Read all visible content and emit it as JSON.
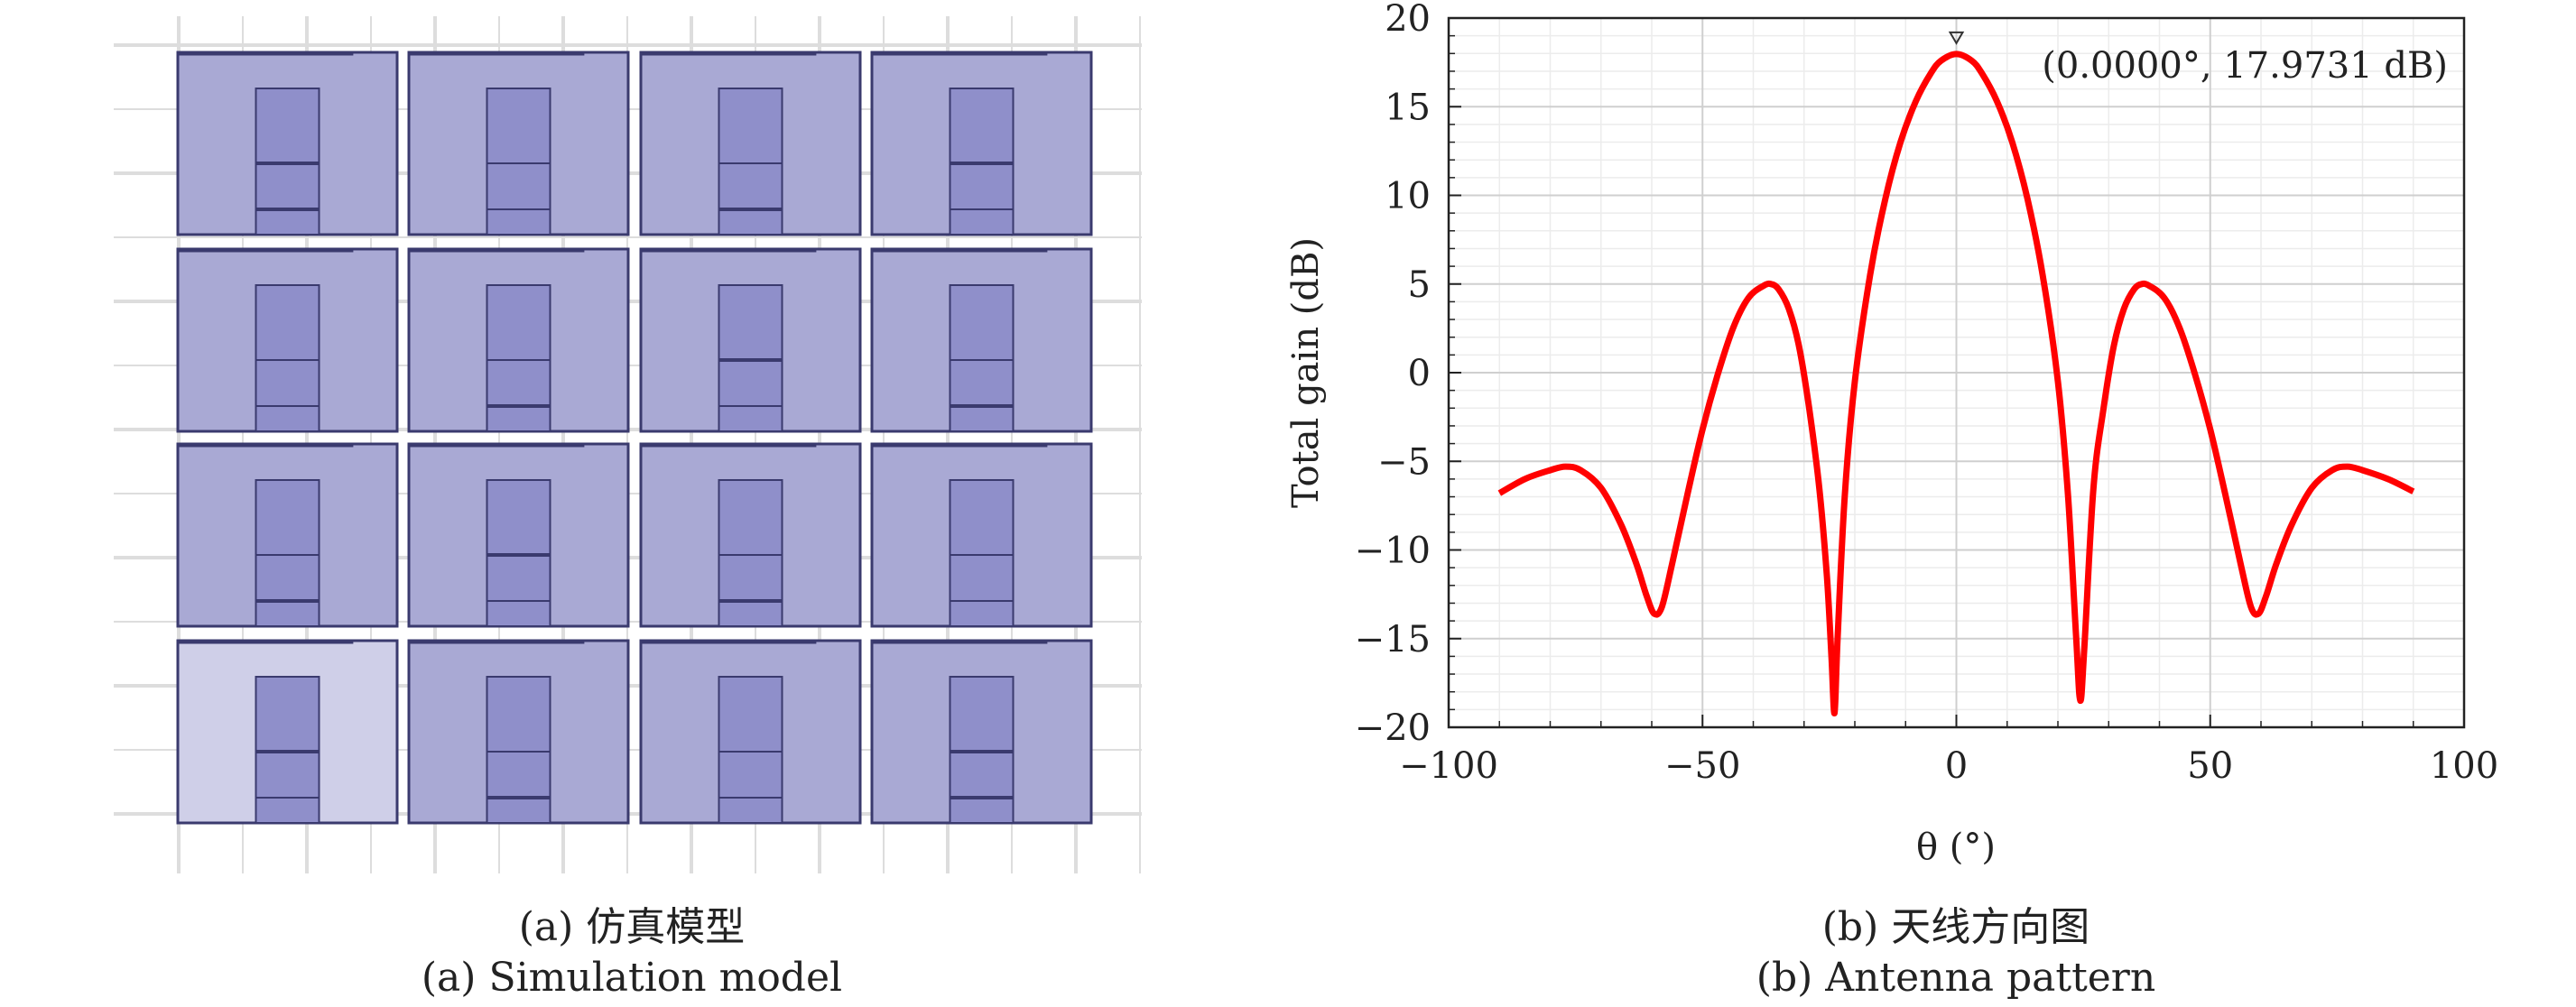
{
  "panel_a": {
    "caption_cn": "(a) 仿真模型",
    "caption_en": "(a) Simulation model",
    "grid_rows": 4,
    "grid_cols": 4,
    "colors": {
      "patch": "#a9a9d4",
      "patch_light": "#cfcfe8",
      "feed": "#8f8fca",
      "edge": "#3a3a6e",
      "grid": "#dddddd"
    }
  },
  "panel_b": {
    "caption_cn": "(b) 天线方向图",
    "caption_en": "(b) Antenna pattern",
    "annotation": "(0.0000°, 17.9731 dB)"
  },
  "chart_data": {
    "type": "line",
    "title": "",
    "xlabel": "θ (°)",
    "ylabel": "Total gain (dB)",
    "xlim": [
      -100,
      100
    ],
    "ylim": [
      -20,
      20
    ],
    "xticks": [
      -100,
      -50,
      0,
      50,
      100
    ],
    "yticks": [
      -20,
      -15,
      -10,
      -5,
      0,
      5,
      10,
      15,
      20
    ],
    "xtick_labels": [
      "−100",
      "−50",
      "0",
      "50",
      "100"
    ],
    "ytick_labels": [
      "−20",
      "−15",
      "−10",
      "−5",
      "0",
      "5",
      "10",
      "15",
      "20"
    ],
    "grid": true,
    "color": "#ff0000",
    "series": [
      {
        "x": [
          -90,
          -85,
          -80,
          -77,
          -74,
          -70,
          -66,
          -63,
          -61,
          -59.5,
          -58,
          -56,
          -53,
          -50,
          -47,
          -44,
          -41,
          -38,
          -36.5,
          -35,
          -33,
          -31,
          -29,
          -27,
          -25.5,
          -24.6,
          -24,
          -23.4,
          -22,
          -20,
          -17,
          -14,
          -11,
          -8,
          -5,
          -3,
          0,
          3,
          5,
          8,
          11,
          14,
          17,
          20,
          22,
          23.6,
          24.4,
          25.2,
          27,
          29,
          31,
          33,
          35,
          36.5,
          38,
          41,
          44,
          47,
          50,
          53,
          56,
          58,
          59.5,
          61,
          63,
          66,
          70,
          74,
          77,
          80,
          85,
          90
        ],
        "y": [
          -6.8,
          -6.0,
          -5.5,
          -5.3,
          -5.5,
          -6.5,
          -8.6,
          -10.8,
          -12.6,
          -13.6,
          -13.2,
          -10.8,
          -6.9,
          -3.2,
          -0.1,
          2.5,
          4.2,
          4.9,
          5.0,
          4.7,
          3.6,
          1.5,
          -2.0,
          -6.5,
          -11.5,
          -16.0,
          -19.2,
          -15.0,
          -7.0,
          -0.5,
          5.5,
          9.8,
          13.0,
          15.3,
          16.9,
          17.6,
          17.97,
          17.6,
          16.9,
          15.3,
          13.0,
          9.8,
          5.5,
          -0.5,
          -7.0,
          -15.0,
          -18.5,
          -15.5,
          -6.5,
          -2.0,
          1.5,
          3.6,
          4.7,
          5.0,
          4.9,
          4.2,
          2.5,
          -0.1,
          -3.2,
          -6.9,
          -10.8,
          -13.2,
          -13.6,
          -12.6,
          -10.8,
          -8.6,
          -6.5,
          -5.5,
          -5.3,
          -5.5,
          -6.0,
          -6.7
        ]
      }
    ],
    "marker": {
      "x": 0.0,
      "y": 17.9731
    }
  }
}
